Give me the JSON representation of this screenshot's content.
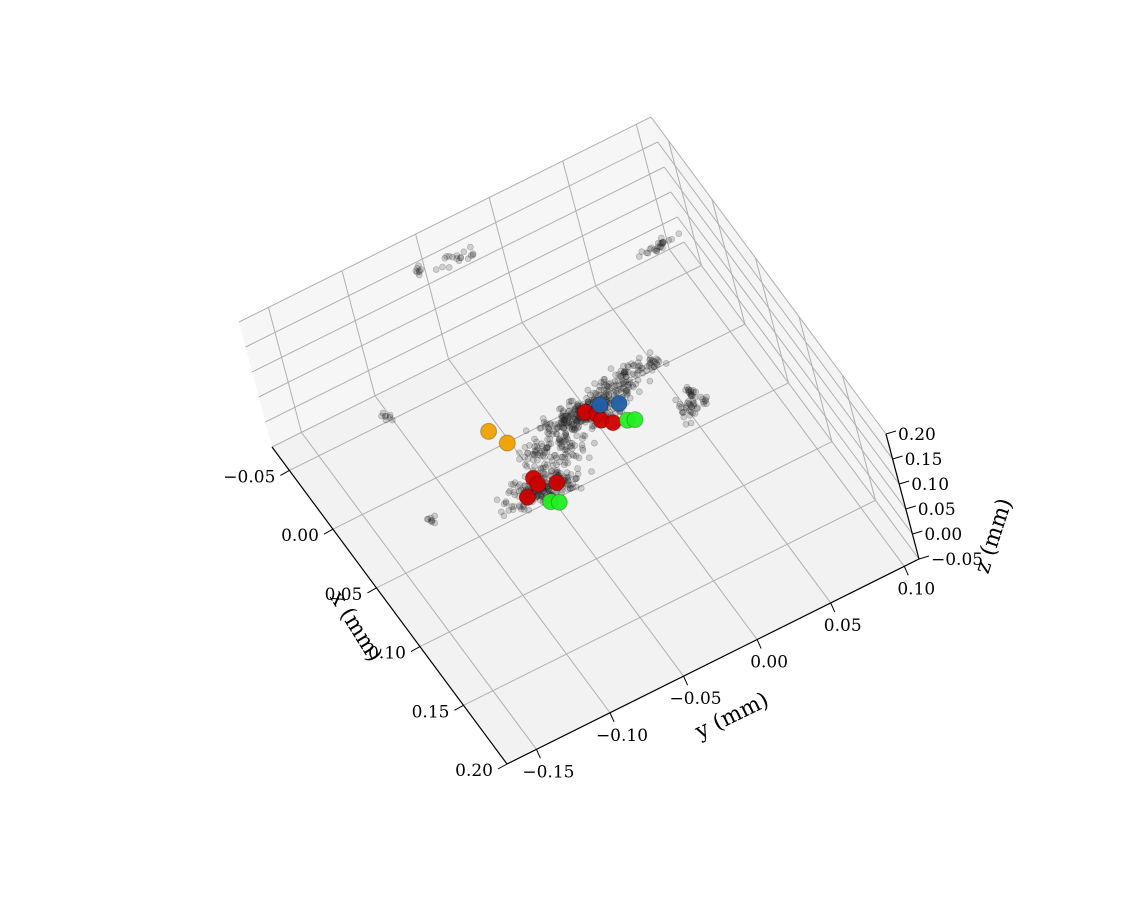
{
  "chart_data": {
    "type": "scatter",
    "projection": "3d",
    "grid": true,
    "xlabel": "x (mm)",
    "ylabel": "y (mm)",
    "zlabel": "z (mm)",
    "xlim": [
      -0.07,
      0.2
    ],
    "ylim": [
      -0.17,
      0.11
    ],
    "zlim": [
      -0.05,
      0.2
    ],
    "xticks": [
      -0.05,
      0.0,
      0.05,
      0.1,
      0.15,
      0.2
    ],
    "yticks": [
      -0.15,
      -0.1,
      -0.05,
      0.0,
      0.05,
      0.1
    ],
    "zticks": [
      -0.05,
      0.0,
      0.05,
      0.1,
      0.15,
      0.2
    ],
    "xtick_labels": [
      "−0.05",
      "0.00",
      "0.05",
      "0.10",
      "0.15",
      "0.20"
    ],
    "ytick_labels": [
      "−0.15",
      "−0.10",
      "−0.05",
      "0.00",
      "0.05",
      "0.10"
    ],
    "ztick_labels": [
      "−0.05",
      "0.00",
      "0.05",
      "0.10",
      "0.15",
      "0.20"
    ],
    "colors": {
      "cloud": "#222222",
      "red": "#cc0000",
      "blue": "#1f5fa8",
      "green": "#22ee22",
      "orange": "#f0a000",
      "pane": "#f2f2f2",
      "grid": "#b0b0b0"
    },
    "series": [
      {
        "color_key": "red",
        "points": [
          [
            0.03,
            -0.01,
            0.02
          ],
          [
            0.035,
            -0.005,
            0.02
          ],
          [
            0.04,
            -0.005,
            0.02
          ],
          [
            0.045,
            0.0,
            0.02
          ],
          [
            0.055,
            -0.06,
            0.02
          ],
          [
            0.06,
            -0.06,
            0.02
          ],
          [
            0.065,
            -0.07,
            0.02
          ],
          [
            0.065,
            -0.05,
            0.02
          ]
        ]
      },
      {
        "color_key": "blue",
        "points": [
          [
            0.03,
            0.0,
            0.02
          ],
          [
            0.035,
            0.01,
            0.02
          ]
        ]
      },
      {
        "color_key": "green",
        "points": [
          [
            0.048,
            0.008,
            0.02
          ],
          [
            0.05,
            0.012,
            0.02
          ],
          [
            0.075,
            -0.06,
            0.02
          ],
          [
            0.078,
            -0.056,
            0.02
          ]
        ]
      },
      {
        "color_key": "orange",
        "points": [
          [
            0.012,
            -0.065,
            0.02
          ],
          [
            0.025,
            -0.06,
            0.02
          ]
        ]
      }
    ]
  }
}
